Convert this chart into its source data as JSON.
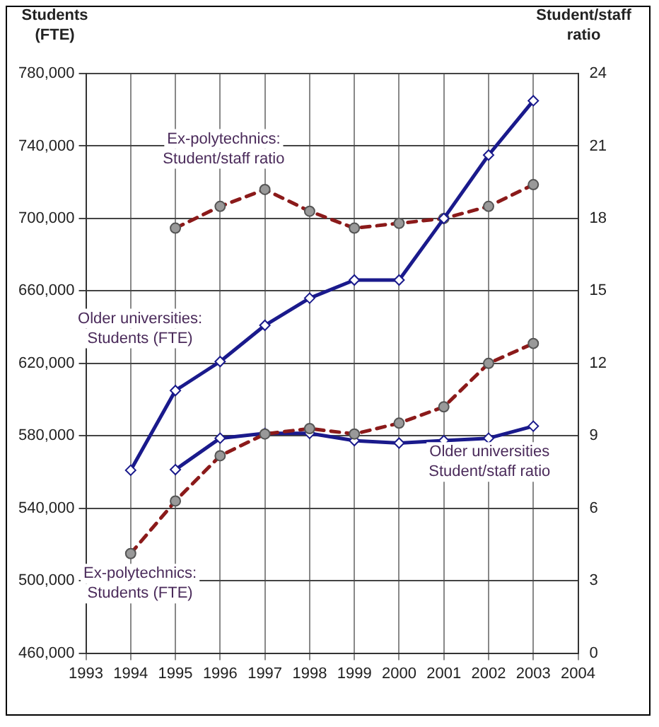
{
  "chart_data": {
    "type": "line",
    "ylabel": "Students (FTE)",
    "y2label": "Student/staff ratio",
    "x": [
      1994,
      1995,
      1996,
      1997,
      1998,
      1999,
      2000,
      2001,
      2002,
      2003
    ],
    "xlim": [
      1993,
      2004
    ],
    "xticks": [
      1993,
      1994,
      1995,
      1996,
      1997,
      1998,
      1999,
      2000,
      2001,
      2002,
      2003,
      2004
    ],
    "ylim": [
      460000,
      780000
    ],
    "yticks": [
      {
        "value": 460000,
        "label": "460,000"
      },
      {
        "value": 500000,
        "label": "500,000"
      },
      {
        "value": 540000,
        "label": "540,000"
      },
      {
        "value": 580000,
        "label": "580,000"
      },
      {
        "value": 620000,
        "label": "620,000"
      },
      {
        "value": 660000,
        "label": "660,000"
      },
      {
        "value": 700000,
        "label": "700,000"
      },
      {
        "value": 740000,
        "label": "740,000"
      },
      {
        "value": 780000,
        "label": "780,000"
      }
    ],
    "y2lim": [
      0,
      24
    ],
    "y2ticks": [
      0,
      3,
      6,
      9,
      12,
      15,
      18,
      21,
      24
    ],
    "grid": true,
    "legend": false,
    "series": [
      {
        "name": "Older universities: Students (FTE)",
        "color": "#1a1a8c",
        "marker": "diamond",
        "line_style": "solid",
        "values": [
          561000,
          605000,
          621000,
          641000,
          656000,
          666000,
          666000,
          700000,
          735000,
          765000
        ]
      },
      {
        "name": "Ex-polytechnics: Student/staff ratio",
        "color": "#8b1a1a",
        "marker": "circle",
        "line_style": "dashed",
        "axis": "y2",
        "values": [
          null,
          17.6,
          18.5,
          19.2,
          18.3,
          17.6,
          17.8,
          18.0,
          18.5,
          19.4
        ]
      },
      {
        "name": "Ex-polytechnics: Students (FTE)",
        "color": "#8b1a1a",
        "marker": "circle",
        "line_style": "dashed",
        "values": [
          515000,
          544000,
          569000,
          581000,
          584000,
          581000,
          587000,
          596000,
          620000,
          631000
        ]
      },
      {
        "name": "Older universities Student/staff ratio",
        "color": "#1a1a8c",
        "marker": "diamond",
        "line_style": "solid",
        "axis": "y2",
        "values": [
          null,
          7.6,
          8.9,
          9.1,
          9.1,
          8.8,
          8.7,
          8.8,
          8.9,
          9.4
        ]
      }
    ]
  }
}
